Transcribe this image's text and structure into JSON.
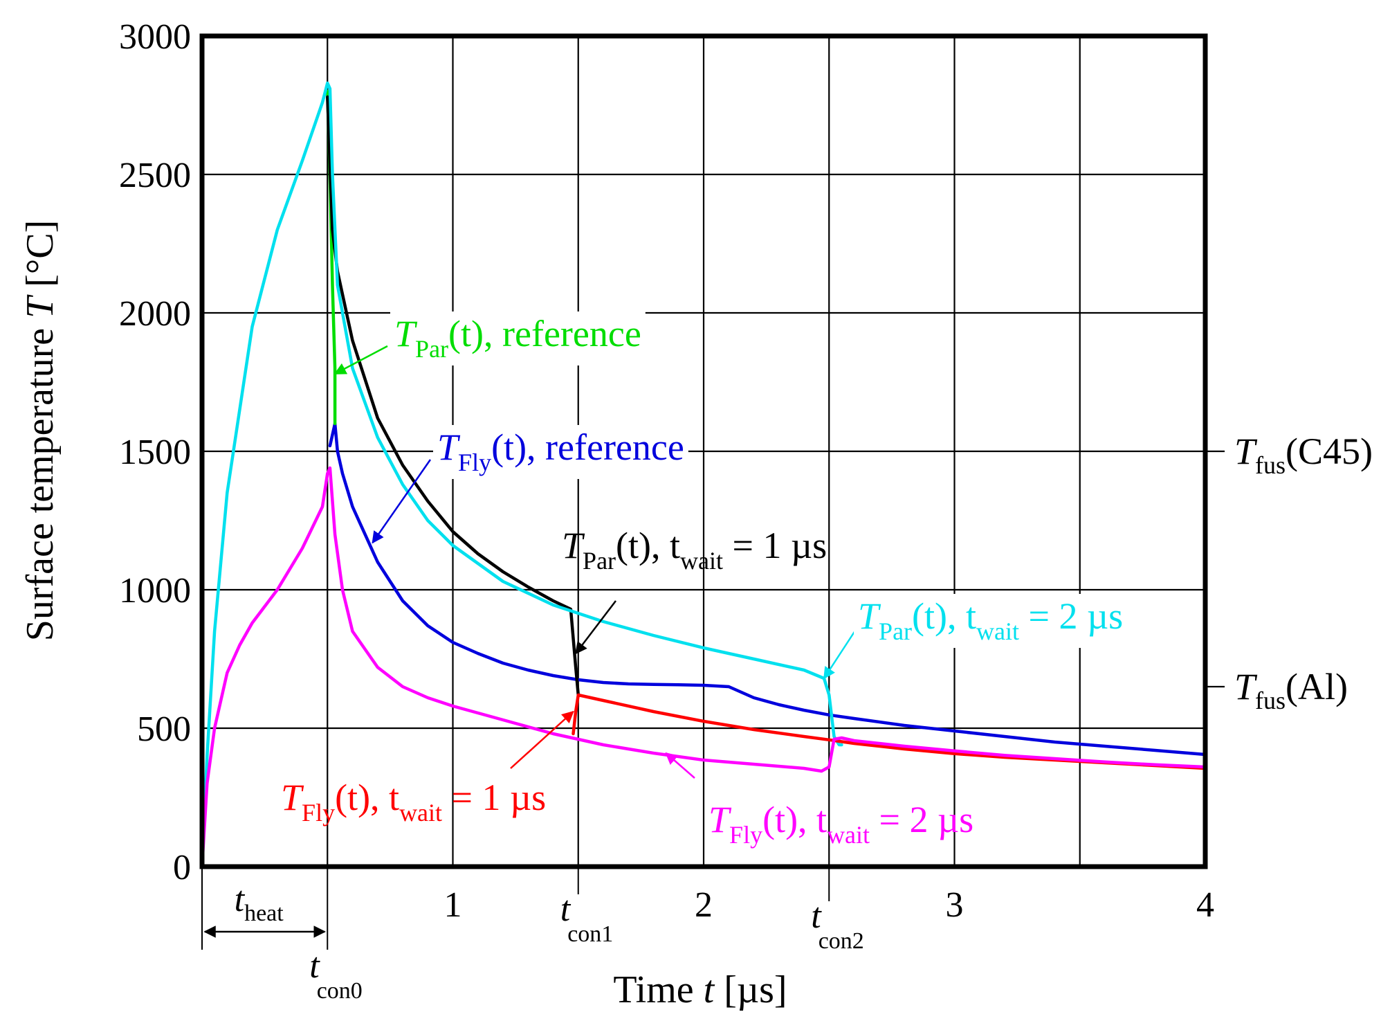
{
  "chart_data": {
    "type": "line",
    "title": "",
    "xlabel": {
      "pre": "Time ",
      "var": "t",
      "post": " [µs]"
    },
    "ylabel": {
      "pre": "Surface temperature ",
      "var": "T",
      "post": " [°C]"
    },
    "xlim": [
      0,
      4
    ],
    "ylim": [
      0,
      3000
    ],
    "grid": true,
    "xticks": [
      {
        "value": 1,
        "label": "1"
      },
      {
        "value": 2,
        "label": "2"
      },
      {
        "value": 3,
        "label": "3"
      },
      {
        "value": 4,
        "label": "4"
      }
    ],
    "yticks": [
      {
        "value": 0,
        "label": "0"
      },
      {
        "value": 500,
        "label": "500"
      },
      {
        "value": 1000,
        "label": "1000"
      },
      {
        "value": 1500,
        "label": "1500"
      },
      {
        "value": 2000,
        "label": "2000"
      },
      {
        "value": 2500,
        "label": "2500"
      },
      {
        "value": 3000,
        "label": "3000"
      }
    ],
    "x_events": [
      {
        "value": 0.0,
        "main": "",
        "sub": ""
      },
      {
        "value": 0.5,
        "main": "t",
        "sub": "con0"
      },
      {
        "value": 1.5,
        "main": "t",
        "sub": "con1"
      },
      {
        "value": 2.5,
        "main": "t",
        "sub": "con2"
      }
    ],
    "heat_label": {
      "main": "t",
      "sub": "heat"
    },
    "reference_lines": [
      {
        "name": "T_fus(C45)",
        "value": 1500,
        "main": "T",
        "sub": "fus",
        "post": "(C45)"
      },
      {
        "name": "T_fus(Al)",
        "value": 650,
        "main": "T",
        "sub": "fus",
        "post": "(Al)"
      }
    ],
    "series": [
      {
        "name": "T_Fly(t), reference",
        "color": "#0000dd",
        "x": [
          0.51,
          0.53,
          0.54,
          0.56,
          0.6,
          0.7,
          0.8,
          0.9,
          1.0,
          1.1,
          1.2,
          1.3,
          1.4,
          1.5,
          1.6,
          1.7,
          1.8,
          1.9,
          2.0,
          2.1,
          2.2,
          2.3,
          2.4,
          2.5,
          2.6,
          2.8,
          3.0,
          3.2,
          3.4,
          3.6,
          3.8,
          4.0
        ],
        "y": [
          1520,
          1600,
          1500,
          1420,
          1300,
          1100,
          960,
          870,
          810,
          770,
          735,
          710,
          690,
          675,
          665,
          660,
          658,
          657,
          655,
          650,
          610,
          585,
          565,
          548,
          535,
          510,
          490,
          470,
          450,
          435,
          420,
          405
        ]
      },
      {
        "name": "T_Par(t), reference",
        "color": "#00dd00",
        "x": [
          0.5,
          0.51,
          0.52,
          0.53,
          0.53
        ],
        "y": [
          2800,
          2500,
          2100,
          1800,
          1600
        ]
      },
      {
        "name": "T_Par(t), t_wait = 1 µs",
        "color": "#000000",
        "x": [
          0.5,
          0.52,
          0.54,
          0.6,
          0.7,
          0.8,
          0.9,
          1.0,
          1.1,
          1.2,
          1.3,
          1.4,
          1.47,
          1.49,
          1.5
        ],
        "y": [
          2780,
          2300,
          2150,
          1900,
          1620,
          1450,
          1320,
          1210,
          1130,
          1065,
          1010,
          960,
          930,
          720,
          620
        ]
      },
      {
        "name": "T_Par(t), t_wait = 2 µs",
        "color": "#00e0ee",
        "x": [
          0.0,
          0.02,
          0.05,
          0.1,
          0.2,
          0.3,
          0.4,
          0.48,
          0.5,
          0.51,
          0.52,
          0.54,
          0.6,
          0.7,
          0.8,
          0.9,
          1.0,
          1.2,
          1.4,
          1.6,
          1.8,
          2.0,
          2.2,
          2.4,
          2.48,
          2.5,
          2.52,
          2.54,
          2.55
        ],
        "y": [
          0,
          400,
          850,
          1350,
          1950,
          2300,
          2550,
          2760,
          2830,
          2810,
          2500,
          2100,
          1800,
          1550,
          1380,
          1250,
          1160,
          1030,
          945,
          885,
          835,
          790,
          750,
          710,
          680,
          620,
          470,
          440,
          440
        ]
      },
      {
        "name": "T_Fly(t), t_wait = 1 µs",
        "color": "#ff0000",
        "x": [
          1.48,
          1.49,
          1.5,
          1.6,
          1.8,
          2.0,
          2.2,
          2.4,
          2.5,
          2.6,
          2.8,
          3.0,
          3.2,
          3.4,
          3.6,
          3.8,
          4.0
        ],
        "y": [
          480,
          560,
          620,
          600,
          560,
          525,
          495,
          470,
          458,
          445,
          425,
          408,
          395,
          385,
          375,
          365,
          355
        ]
      },
      {
        "name": "T_Fly(t), t_wait = 2 µs",
        "color": "#ff00ff",
        "x": [
          0.0,
          0.02,
          0.05,
          0.1,
          0.15,
          0.2,
          0.3,
          0.4,
          0.48,
          0.5,
          0.51,
          0.53,
          0.56,
          0.6,
          0.7,
          0.8,
          0.9,
          1.0,
          1.2,
          1.4,
          1.6,
          1.8,
          2.0,
          2.2,
          2.4,
          2.47,
          2.5,
          2.52,
          2.55,
          2.6,
          2.8,
          3.0,
          3.2,
          3.4,
          3.6,
          3.8,
          4.0
        ],
        "y": [
          0,
          300,
          500,
          700,
          800,
          880,
          1000,
          1150,
          1300,
          1420,
          1440,
          1200,
          1000,
          850,
          720,
          650,
          610,
          580,
          530,
          480,
          440,
          410,
          385,
          370,
          355,
          345,
          360,
          460,
          465,
          455,
          435,
          418,
          402,
          390,
          378,
          368,
          360
        ]
      }
    ],
    "annotations": [
      {
        "main": "T",
        "sub": "Par",
        "arg": "(t)",
        "post": ", reference",
        "color": "#00dd00",
        "post_sub": "",
        "post_tail": ""
      },
      {
        "main": "T",
        "sub": "Fly",
        "arg": "(t)",
        "post": ", reference",
        "color": "#0000dd",
        "post_sub": "",
        "post_tail": ""
      },
      {
        "main": "T",
        "sub": "Par",
        "arg": "(t)",
        "post": ", t",
        "color": "#000000",
        "post_sub": "wait",
        "post_tail": " = 1 µs"
      },
      {
        "main": "T",
        "sub": "Par",
        "arg": "(t)",
        "post": ", t",
        "color": "#00e0ee",
        "post_sub": "wait",
        "post_tail": " = 2 µs"
      },
      {
        "main": "T",
        "sub": "Fly",
        "arg": "(t)",
        "post": ", t",
        "color": "#ff0000",
        "post_sub": "wait",
        "post_tail": " = 1 µs"
      },
      {
        "main": "T",
        "sub": "Fly",
        "arg": "(t)",
        "post": ", t",
        "color": "#ff00ff",
        "post_sub": "wait",
        "post_tail": " = 2 µs"
      }
    ]
  }
}
